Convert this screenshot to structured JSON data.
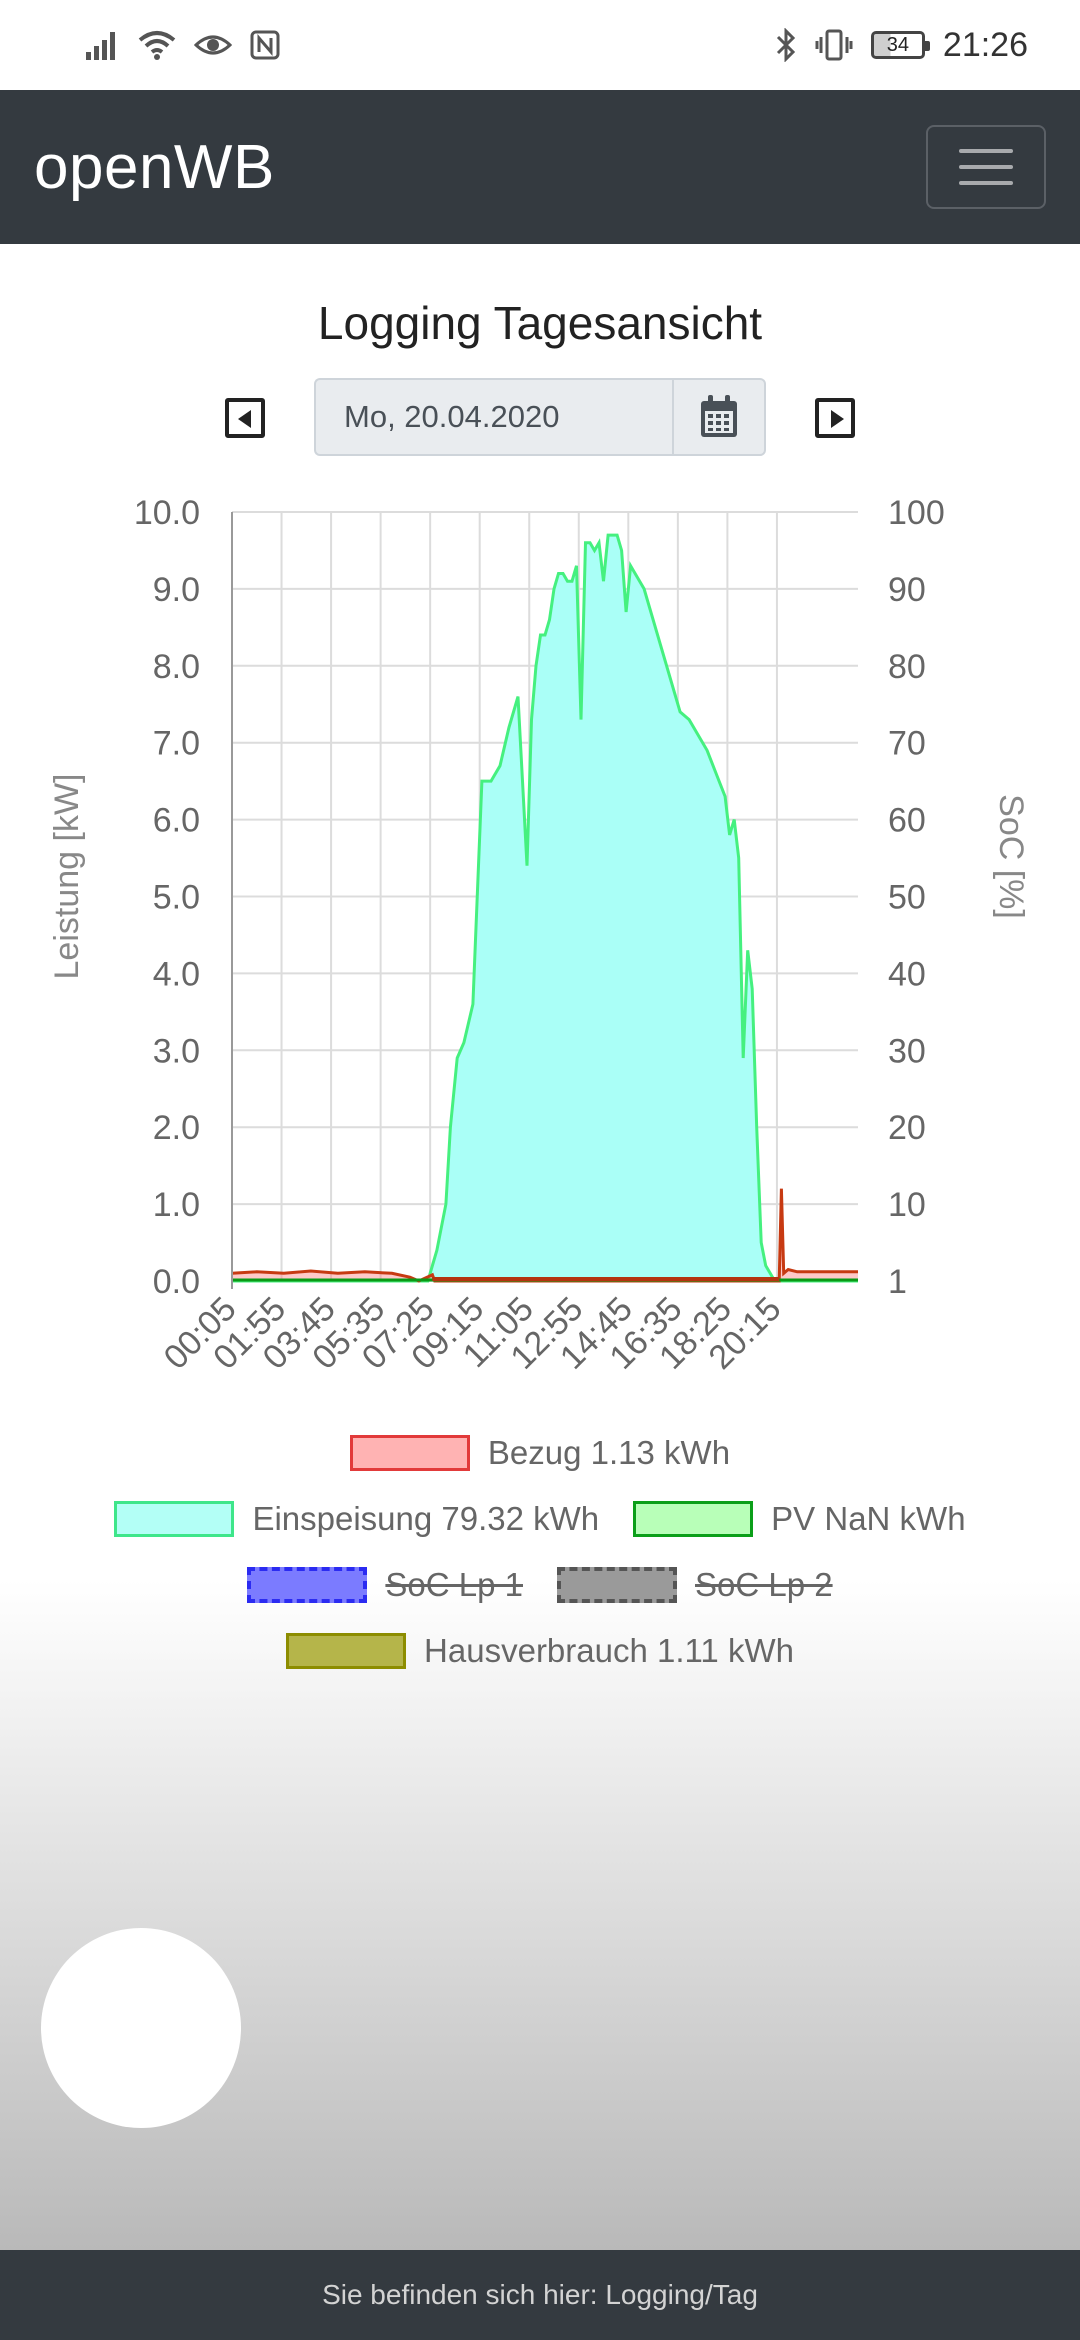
{
  "status_bar": {
    "time": "21:26",
    "battery": "34",
    "left_icons": [
      "signal-icon",
      "wifi-icon",
      "eye-icon",
      "nfc-icon"
    ],
    "right_icons": [
      "bluetooth-icon",
      "vibrate-icon",
      "battery-icon"
    ]
  },
  "navbar": {
    "brand": "openWB"
  },
  "page": {
    "title": "Logging Tagesansicht",
    "date_value": "Mo, 20.04.2020"
  },
  "colors": {
    "navbar": "#343a40",
    "bezug": "#ff0000",
    "einspeisung": "#00ffe1",
    "pv": "#009e0c",
    "soc1": "#0000ff",
    "soc2": "#4d4d4d",
    "hausverbrauch": "#8c8c00"
  },
  "chart_data": {
    "type": "area",
    "ylabel_left": "Leistung [kW]",
    "ylabel_right": "SoC [%]",
    "ylim_left": [
      0,
      10
    ],
    "ylim_right": [
      0,
      100
    ],
    "left_ticks": [
      "10.0",
      "9.0",
      "8.0",
      "7.0",
      "6.0",
      "5.0",
      "4.0",
      "3.0",
      "2.0",
      "1.0",
      "0.0"
    ],
    "right_ticks": [
      "100",
      "90",
      "80",
      "70",
      "60",
      "50",
      "40",
      "30",
      "20",
      "10",
      "1"
    ],
    "x_ticks": [
      "00:05",
      "01:55",
      "03:45",
      "05:35",
      "07:25",
      "09:15",
      "11:05",
      "12:55",
      "14:45",
      "16:35",
      "18:25",
      "20:15"
    ],
    "x_start_minutes": 5,
    "x_end_minutes": 1395,
    "grid": true,
    "series": [
      {
        "name": "Einspeisung",
        "values_time": [
          "00:05",
          "06:40",
          "07:20",
          "07:40",
          "08:00",
          "08:10",
          "08:25",
          "08:40",
          "09:00",
          "09:20",
          "09:40",
          "10:00",
          "10:20",
          "10:40",
          "11:00",
          "11:10",
          "11:20",
          "11:30",
          "11:40",
          "11:50",
          "12:00",
          "12:10",
          "12:20",
          "12:30",
          "12:40",
          "12:50",
          "13:00",
          "13:10",
          "13:20",
          "13:30",
          "13:40",
          "13:50",
          "14:00",
          "14:10",
          "14:20",
          "14:30",
          "14:40",
          "14:50",
          "15:00",
          "15:20",
          "15:40",
          "16:00",
          "16:20",
          "16:40",
          "17:00",
          "17:20",
          "17:40",
          "18:00",
          "18:20",
          "18:30",
          "18:40",
          "18:50",
          "19:00",
          "19:10",
          "19:20",
          "19:30",
          "19:40",
          "19:50",
          "20:00",
          "20:10",
          "20:20",
          "20:30",
          "20:40",
          "20:50",
          "21:00",
          "22:00",
          "23:15"
        ],
        "values": [
          0,
          0,
          0,
          0.4,
          1.0,
          2.0,
          2.9,
          3.1,
          3.6,
          6.5,
          6.5,
          6.7,
          7.2,
          7.6,
          5.4,
          7.3,
          8.0,
          8.4,
          8.4,
          8.6,
          9.0,
          9.2,
          9.2,
          9.1,
          9.1,
          9.3,
          7.3,
          9.6,
          9.6,
          9.5,
          9.6,
          9.1,
          9.7,
          9.7,
          9.7,
          9.5,
          8.7,
          9.3,
          9.2,
          9.0,
          8.6,
          8.2,
          7.8,
          7.4,
          7.3,
          7.1,
          6.9,
          6.6,
          6.3,
          5.8,
          6.0,
          5.5,
          2.9,
          4.3,
          3.8,
          2.0,
          0.5,
          0.2,
          0.1,
          0.0,
          0.0,
          0.0,
          0.0,
          0.0,
          0.0,
          0.0,
          0.0
        ]
      },
      {
        "name": "Bezug",
        "values_time": [
          "00:05",
          "01:00",
          "02:00",
          "03:00",
          "04:00",
          "05:00",
          "06:00",
          "06:40",
          "07:00",
          "07:30",
          "07:35",
          "20:20",
          "20:25",
          "20:30",
          "20:40",
          "21:00",
          "23:15"
        ],
        "values": [
          0.1,
          0.12,
          0.1,
          0.13,
          0.1,
          0.12,
          0.1,
          0.05,
          0.0,
          0.08,
          0.0,
          0.0,
          1.2,
          0.1,
          0.15,
          0.12,
          0.12
        ]
      }
    ]
  },
  "legend": {
    "row1": [
      {
        "label": "Bezug 1.13 kWh",
        "fill": "#ffb3b3",
        "border": "#e23a3a",
        "hidden": false
      }
    ],
    "row2": [
      {
        "label": "Einspeisung 79.32 kWh",
        "fill": "#b3fff6",
        "border": "#3ee68a",
        "hidden": false
      },
      {
        "label": "PV NaN kWh",
        "fill": "#b8ffb8",
        "border": "#0b9f19",
        "hidden": false
      }
    ],
    "row3": [
      {
        "label": "SoC Lp 1",
        "fill": "#7b7bff",
        "border": "#2b2bf1",
        "hidden": true
      },
      {
        "label": "SoC Lp 2",
        "fill": "#9a9a9a",
        "border": "#555555",
        "hidden": true
      }
    ],
    "row4": [
      {
        "label": "Hausverbrauch 1.11 kWh",
        "fill": "#b5b54a",
        "border": "#8d8d00",
        "hidden": false
      }
    ]
  },
  "footer": {
    "text": "Sie befinden sich hier: Logging/Tag"
  }
}
